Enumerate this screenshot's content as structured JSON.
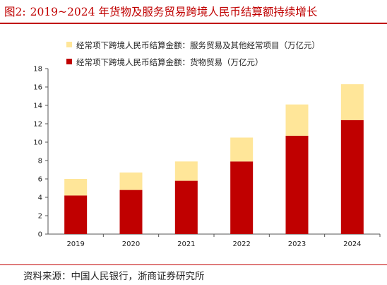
{
  "figure": {
    "number": "图2:",
    "title": "2019~2024 年货物及服务贸易跨境人民币结算额持续增长",
    "source": "资料来源：中国人民银行，浙商证券研究所"
  },
  "colors": {
    "goods": "#c00000",
    "services": "#ffe699",
    "accent": "#c00000"
  },
  "chart_data": {
    "type": "bar",
    "stacked": true,
    "categories": [
      "2019",
      "2020",
      "2021",
      "2022",
      "2023",
      "2024"
    ],
    "series": [
      {
        "name": "经常项下跨境人民币结算金额：货物贸易（万亿元）",
        "values": [
          4.2,
          4.8,
          5.8,
          7.9,
          10.7,
          12.4
        ]
      },
      {
        "name": "经常项下跨境人民币结算金额：服务贸易及其他经常项目（万亿元）",
        "values": [
          1.8,
          1.9,
          2.1,
          2.6,
          3.4,
          3.9
        ]
      }
    ],
    "yticks": [
      "0",
      "2",
      "4",
      "6",
      "8",
      "10",
      "12",
      "14",
      "16",
      "18"
    ],
    "ylim": [
      0,
      18
    ],
    "grid": false,
    "legend_position": "top-left"
  }
}
